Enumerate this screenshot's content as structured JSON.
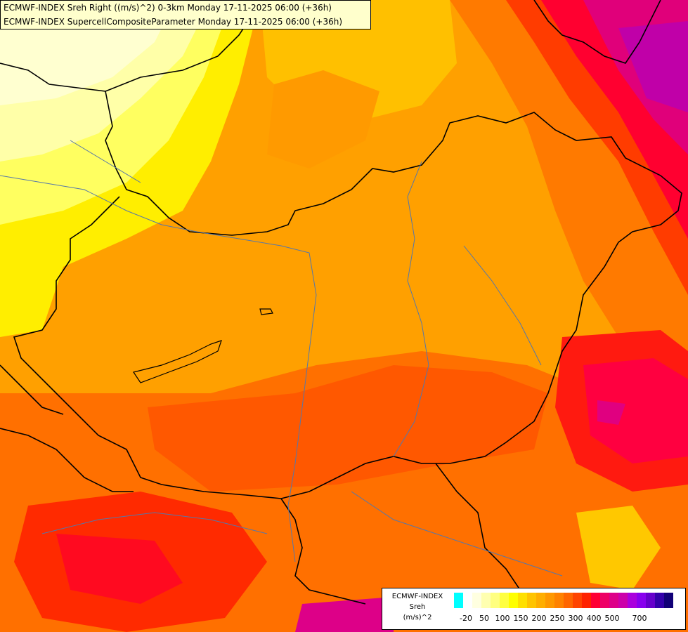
{
  "title": {
    "line1": "ECMWF-INDEX Sreh Right ((m/s)^2) 0-3km Monday 17-11-2025 06:00 (+36h)",
    "line2": "ECMWF-INDEX SupercellCompositeParameter Monday 17-11-2025 06:00 (+36h)"
  },
  "legend": {
    "source": "ECMWF-INDEX",
    "variable": "Sreh",
    "unit": "(m/s)^2",
    "colors": [
      "#00ffff",
      "#ffffff",
      "#ffffe0",
      "#ffffb0",
      "#ffff80",
      "#ffff40",
      "#ffff00",
      "#ffe000",
      "#ffc400",
      "#ffae00",
      "#ff9800",
      "#ff8200",
      "#ff6600",
      "#ff4400",
      "#ff2200",
      "#ff0033",
      "#ee0066",
      "#dd0088",
      "#cc00aa",
      "#aa00dd",
      "#8800ee",
      "#6600cc",
      "#3300aa",
      "#110077"
    ],
    "tick_labels": [
      "-20",
      "50",
      "100",
      "150",
      "200",
      "250",
      "300",
      "400",
      "500",
      "700"
    ]
  }
}
